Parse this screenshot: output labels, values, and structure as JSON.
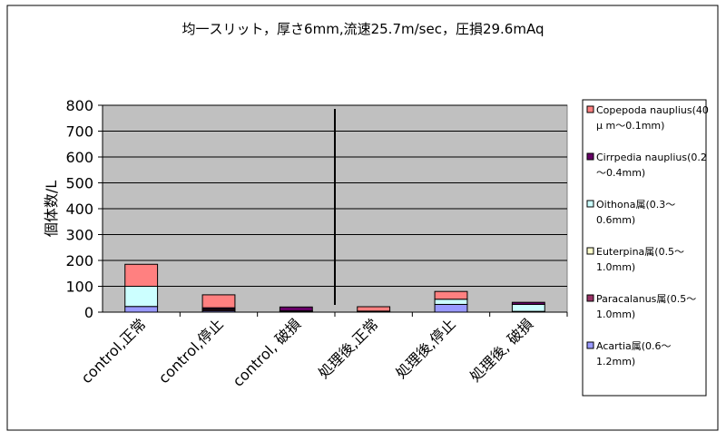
{
  "chart_data": {
    "type": "bar",
    "stacked": true,
    "title": "均一スリット，厚さ6mm,流速25.7m/sec，圧損29.6mAq",
    "ylabel": "個体数/L",
    "xlabel": "",
    "ylim": [
      0,
      800
    ],
    "yticks": [
      0,
      100,
      200,
      300,
      400,
      500,
      600,
      700,
      800
    ],
    "grid": true,
    "legend_position": "right",
    "categories": [
      "control,正常",
      "control,停止",
      "control, 破損",
      "処理後,正常",
      "処理後,停止",
      "処理後, 破損"
    ],
    "separator_after_category": 3,
    "series": [
      {
        "name": "Acartia属(0.6～1.2mm)",
        "color": "#9999ff",
        "values": [
          22,
          5,
          3,
          2,
          30,
          3
        ]
      },
      {
        "name": "Paracalanus属(0.5～1.0mm)",
        "color": "#993366",
        "values": [
          0,
          5,
          2,
          2,
          0,
          0
        ]
      },
      {
        "name": "Euterpina属(0.5～1.0mm)",
        "color": "#ffffcc",
        "values": [
          0,
          0,
          0,
          0,
          0,
          0
        ]
      },
      {
        "name": "Oithona属(0.3～0.6mm)",
        "color": "#ccffff",
        "values": [
          78,
          2,
          0,
          0,
          20,
          27
        ]
      },
      {
        "name": "Cirrpedia nauplius(0.2～0.4mm)",
        "color": "#660066",
        "values": [
          0,
          5,
          15,
          0,
          0,
          8
        ]
      },
      {
        "name": "Copepoda nauplius(40μm～0.1mm)",
        "color": "#ff8080",
        "values": [
          85,
          50,
          0,
          17,
          30,
          0
        ]
      }
    ],
    "legend": [
      {
        "label_lines": [
          "Copepoda nauplius(40",
          "μ m～0.1mm)"
        ],
        "color": "#ff8080"
      },
      {
        "label_lines": [
          "Cirrpedia nauplius(0.2",
          "～0.4mm)"
        ],
        "color": "#660066"
      },
      {
        "label_lines": [
          "Oithona属(0.3～",
          "0.6mm)"
        ],
        "color": "#ccffff"
      },
      {
        "label_lines": [
          "Euterpina属(0.5～",
          "1.0mm)"
        ],
        "color": "#ffffcc"
      },
      {
        "label_lines": [
          "Paracalanus属(0.5～",
          "1.0mm)"
        ],
        "color": "#993366"
      },
      {
        "label_lines": [
          "Acartia属(0.6～",
          "1.2mm)"
        ],
        "color": "#9999ff"
      }
    ]
  }
}
